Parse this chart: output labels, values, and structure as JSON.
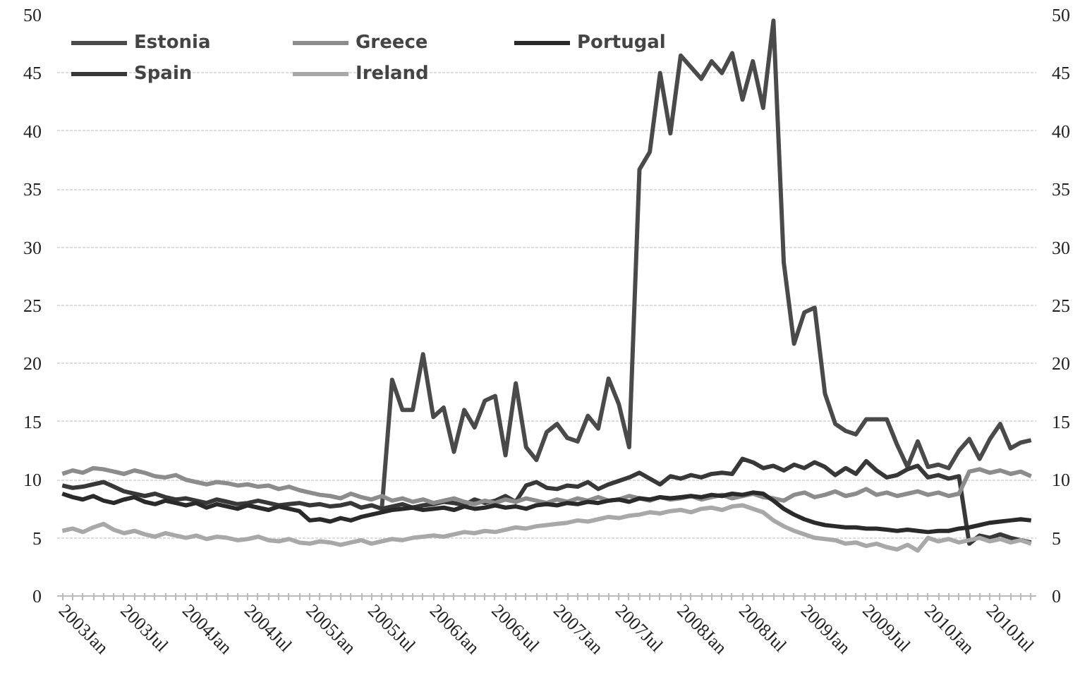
{
  "chart_data": {
    "type": "line",
    "categories": [
      "2003Jan",
      null,
      null,
      null,
      null,
      null,
      "2003Jul",
      null,
      null,
      null,
      null,
      null,
      "2004Jan",
      null,
      null,
      null,
      null,
      null,
      "2004Jul",
      null,
      null,
      null,
      null,
      null,
      "2005Jan",
      null,
      null,
      null,
      null,
      null,
      "2005Jul",
      null,
      null,
      null,
      null,
      null,
      "2006Jan",
      null,
      null,
      null,
      null,
      null,
      "2006Jul",
      null,
      null,
      null,
      null,
      null,
      "2007Jan",
      null,
      null,
      null,
      null,
      null,
      "2007Jul",
      null,
      null,
      null,
      null,
      null,
      "2008Jan",
      null,
      null,
      null,
      null,
      null,
      "2008Jul",
      null,
      null,
      null,
      null,
      null,
      "2009Jan",
      null,
      null,
      null,
      null,
      null,
      "2009Jul",
      null,
      null,
      null,
      null,
      null,
      "2010Jan",
      null,
      null,
      null,
      null,
      null,
      "2010Jul",
      null,
      null,
      null,
      null
    ],
    "series": [
      {
        "name": "Estonia",
        "color": "#4a4a4a",
        "values": [
          null,
          null,
          null,
          null,
          null,
          null,
          null,
          null,
          null,
          null,
          null,
          null,
          null,
          null,
          null,
          null,
          null,
          null,
          null,
          null,
          null,
          null,
          null,
          null,
          null,
          null,
          null,
          null,
          null,
          null,
          null,
          7.5,
          18.6,
          16,
          16,
          20.8,
          15.4,
          16.2,
          12.4,
          16,
          14.5,
          16.8,
          17.2,
          12.1,
          18.3,
          12.8,
          11.7,
          14.1,
          14.8,
          13.6,
          13.3,
          15.5,
          14.4,
          18.7,
          16.5,
          12.8,
          36.7,
          38.2,
          45,
          39.8,
          46.5,
          45.5,
          44.5,
          46,
          45,
          46.7,
          42.7,
          46,
          42,
          49.5,
          28.7,
          21.7,
          24.4,
          24.8,
          17.4,
          14.8,
          14.2,
          13.9,
          15.2,
          15.2,
          15.2,
          13,
          11.1,
          13.3,
          11.1,
          11.3,
          11,
          12.5,
          13.5,
          11.8,
          13.5,
          14.8,
          12.7,
          13.2,
          13.4
        ]
      },
      {
        "name": "Spain",
        "color": "#383838",
        "values": [
          9.5,
          9.3,
          9.4,
          9.6,
          9.8,
          9.4,
          9,
          8.8,
          8.6,
          8.8,
          8.5,
          8.3,
          8.4,
          8.2,
          8,
          8.3,
          8.1,
          7.9,
          8,
          8.2,
          8,
          7.8,
          7.9,
          8,
          7.8,
          7.9,
          7.7,
          7.8,
          8,
          7.6,
          7.8,
          7.5,
          7.7,
          7.9,
          7.6,
          7.8,
          7.9,
          8.1,
          8,
          7.8,
          8.3,
          8,
          8.2,
          8.6,
          8.1,
          9.5,
          9.8,
          9.3,
          9.2,
          9.5,
          9.4,
          9.8,
          9.2,
          9.6,
          9.9,
          10.2,
          10.6,
          10.1,
          9.6,
          10.3,
          10.1,
          10.4,
          10.2,
          10.5,
          10.6,
          10.5,
          11.8,
          11.5,
          11,
          11.2,
          10.8,
          11.3,
          11,
          11.5,
          11.1,
          10.4,
          11,
          10.5,
          11.6,
          10.8,
          10.2,
          10.4,
          10.9,
          11.2,
          10.2,
          10.4,
          10.1,
          10.3,
          4.5,
          5.2,
          5,
          5.3,
          5,
          4.8,
          4.6
        ]
      },
      {
        "name": "Greece",
        "color": "#8c8c8c",
        "values": [
          10.5,
          10.8,
          10.6,
          11,
          10.9,
          10.7,
          10.5,
          10.8,
          10.6,
          10.3,
          10.2,
          10.4,
          10,
          9.8,
          9.6,
          9.8,
          9.7,
          9.5,
          9.6,
          9.4,
          9.5,
          9.2,
          9.4,
          9.1,
          8.9,
          8.7,
          8.6,
          8.4,
          8.8,
          8.5,
          8.3,
          8.6,
          8.2,
          8.4,
          8.1,
          8.3,
          8,
          8.2,
          8.4,
          8.1,
          7.9,
          8.2,
          8,
          8.3,
          8.1,
          8.4,
          8.2,
          8,
          8.3,
          8.1,
          8.4,
          8.2,
          8.5,
          8.2,
          8.3,
          8.6,
          8.4,
          8.2,
          8.5,
          8.3,
          8.4,
          8.6,
          8.3,
          8.5,
          8.7,
          8.4,
          8.6,
          8.8,
          8.5,
          8.4,
          8.2,
          8.7,
          8.9,
          8.5,
          8.7,
          9,
          8.6,
          8.8,
          9.2,
          8.7,
          8.9,
          8.6,
          8.8,
          9,
          8.7,
          8.9,
          8.6,
          8.8,
          10.7,
          10.9,
          10.6,
          10.8,
          10.5,
          10.7,
          10.3
        ]
      },
      {
        "name": "Ireland",
        "color": "#a8a8a8",
        "values": [
          5.6,
          5.8,
          5.5,
          5.9,
          6.2,
          5.7,
          5.4,
          5.6,
          5.3,
          5.1,
          5.4,
          5.2,
          5,
          5.2,
          4.9,
          5.1,
          5,
          4.8,
          4.9,
          5.1,
          4.8,
          4.7,
          4.9,
          4.6,
          4.5,
          4.7,
          4.6,
          4.4,
          4.6,
          4.8,
          4.5,
          4.7,
          4.9,
          4.8,
          5,
          5.1,
          5.2,
          5.1,
          5.3,
          5.5,
          5.4,
          5.6,
          5.5,
          5.7,
          5.9,
          5.8,
          6,
          6.1,
          6.2,
          6.3,
          6.5,
          6.4,
          6.6,
          6.8,
          6.7,
          6.9,
          7,
          7.2,
          7.1,
          7.3,
          7.4,
          7.2,
          7.5,
          7.6,
          7.4,
          7.7,
          7.8,
          7.5,
          7.2,
          6.5,
          6,
          5.6,
          5.3,
          5,
          4.9,
          4.8,
          4.5,
          4.6,
          4.3,
          4.5,
          4.2,
          4,
          4.4,
          3.9,
          5,
          4.7,
          4.9,
          4.6,
          4.8,
          5,
          4.7,
          4.9,
          4.6,
          4.8,
          4.5
        ]
      },
      {
        "name": "Portugal",
        "color": "#2a2a2a",
        "values": [
          8.8,
          8.5,
          8.3,
          8.6,
          8.2,
          8,
          8.3,
          8.5,
          8.1,
          7.9,
          8.2,
          8,
          7.8,
          8,
          7.6,
          7.9,
          7.7,
          7.5,
          7.8,
          7.6,
          7.4,
          7.7,
          7.5,
          7.3,
          6.5,
          6.6,
          6.4,
          6.7,
          6.5,
          6.8,
          7,
          7.2,
          7.4,
          7.5,
          7.6,
          7.4,
          7.5,
          7.6,
          7.4,
          7.7,
          7.5,
          7.6,
          7.8,
          7.6,
          7.7,
          7.5,
          7.8,
          7.9,
          7.8,
          8,
          7.9,
          8.1,
          8,
          8.2,
          8.3,
          8.1,
          8.4,
          8.3,
          8.5,
          8.4,
          8.5,
          8.6,
          8.5,
          8.7,
          8.6,
          8.8,
          8.7,
          8.9,
          8.8,
          8.2,
          7.5,
          7,
          6.6,
          6.3,
          6.1,
          6,
          5.9,
          5.9,
          5.8,
          5.8,
          5.7,
          5.6,
          5.7,
          5.6,
          5.5,
          5.6,
          5.6,
          5.8,
          5.9,
          6.1,
          6.3,
          6.4,
          6.5,
          6.6,
          6.5
        ]
      }
    ],
    "ylim": [
      0,
      50
    ],
    "yticks": [
      0,
      5,
      10,
      15,
      20,
      25,
      30,
      35,
      40,
      45,
      50
    ],
    "y2lim": [
      0,
      50
    ],
    "y2ticks": [
      0,
      5,
      10,
      15,
      20,
      25,
      30,
      35,
      40,
      45,
      50
    ],
    "grid": "y",
    "legend": "top left",
    "marker": "none",
    "line_style": "solid"
  }
}
